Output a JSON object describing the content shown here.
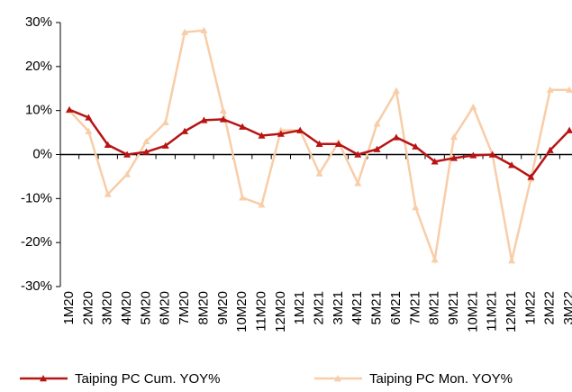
{
  "chart_data": {
    "type": "line",
    "categories": [
      "1M20",
      "2M20",
      "3M20",
      "4M20",
      "5M20",
      "6M20",
      "7M20",
      "8M20",
      "9M20",
      "10M20",
      "11M20",
      "12M20",
      "1M21",
      "2M21",
      "3M21",
      "4M21",
      "5M21",
      "6M21",
      "7M21",
      "8M21",
      "9M21",
      "10M21",
      "11M21",
      "12M21",
      "1M22",
      "2M22",
      "3M22"
    ],
    "series": [
      {
        "name": "Taiping PC Cum. YOY%",
        "color": "#b81414",
        "values": [
          10.2,
          8.4,
          2.2,
          0,
          0.6,
          2,
          5.3,
          7.8,
          8,
          6.3,
          4.3,
          4.7,
          5.5,
          2.4,
          2.4,
          0,
          1.2,
          3.9,
          1.8,
          -1.6,
          -0.8,
          -0.2,
          0,
          -2.4,
          -5.1,
          1,
          5.5
        ]
      },
      {
        "name": "Taiping PC Mon. YOY%",
        "color": "#f8cda8",
        "values": [
          10,
          5.3,
          -9,
          -4.5,
          3,
          7.3,
          27.8,
          28.2,
          10,
          -9.8,
          -11.4,
          5.5,
          5.5,
          -4.3,
          2.8,
          -6.5,
          7,
          14.5,
          -12,
          -23.9,
          4,
          10.8,
          0,
          -24.1,
          -5.5,
          14.7,
          14.7
        ]
      }
    ],
    "ylim": [
      -30,
      30
    ],
    "yticks": [
      {
        "value": -30,
        "label": "-30%"
      },
      {
        "value": -20,
        "label": "-20%"
      },
      {
        "value": -10,
        "label": "-10%"
      },
      {
        "value": 0,
        "label": "0%"
      },
      {
        "value": 10,
        "label": "10%"
      },
      {
        "value": 20,
        "label": "20%"
      },
      {
        "value": 30,
        "label": "30%"
      }
    ],
    "legend": "bottom"
  }
}
